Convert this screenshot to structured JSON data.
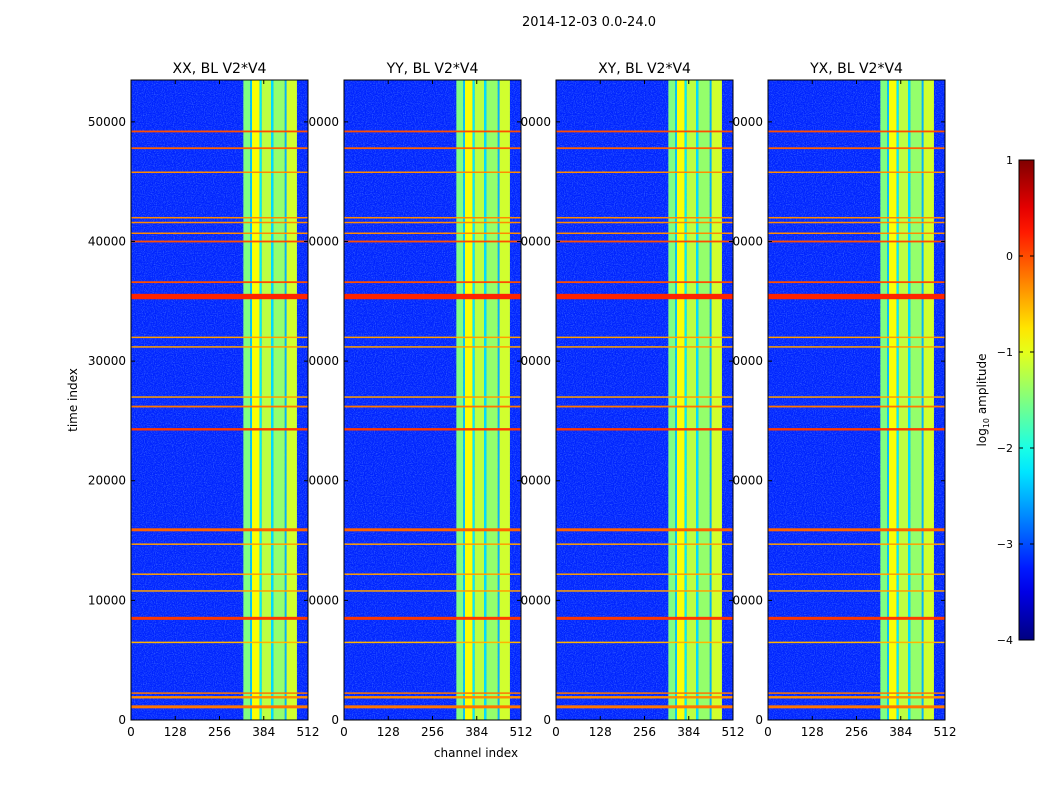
{
  "figure": {
    "suptitle": "2014-12-03 0.0-24.0"
  },
  "colormap": "jet",
  "chart_data": {
    "type": "heatmap",
    "xlabel": "channel index",
    "ylabel": "time index",
    "xlim": [
      0,
      512
    ],
    "ylim": [
      0,
      53500
    ],
    "x_ticks": [
      0,
      128,
      256,
      384,
      512
    ],
    "y_ticks": [
      0,
      10000,
      20000,
      30000,
      40000,
      50000
    ],
    "x_tick_labels": [
      "0",
      "128",
      "256",
      "384",
      "512"
    ],
    "y_tick_labels_first": [
      "0",
      "10000",
      "20000",
      "30000",
      "40000",
      "50000"
    ],
    "y_tick_labels_other": [
      "0",
      "0000",
      "0000",
      "0000",
      "0000",
      "0000"
    ],
    "background_log_amplitude": -3.2,
    "signal_channel_bands": [
      {
        "from": 325,
        "to": 345,
        "log_amplitude": -1.5
      },
      {
        "from": 345,
        "to": 350,
        "log_amplitude": -2.4
      },
      {
        "from": 350,
        "to": 372,
        "log_amplitude": -0.9
      },
      {
        "from": 372,
        "to": 378,
        "log_amplitude": -2.2
      },
      {
        "from": 378,
        "to": 405,
        "log_amplitude": -1.2
      },
      {
        "from": 405,
        "to": 412,
        "log_amplitude": -2.3
      },
      {
        "from": 412,
        "to": 445,
        "log_amplitude": -1.4
      },
      {
        "from": 445,
        "to": 450,
        "log_amplitude": -2.5
      },
      {
        "from": 450,
        "to": 480,
        "log_amplitude": -1.1
      }
    ],
    "rfi_time_lines": [
      {
        "t": 1100,
        "width": 250,
        "log_amplitude": -0.2
      },
      {
        "t": 1900,
        "width": 200,
        "log_amplitude": -0.3
      },
      {
        "t": 2250,
        "width": 120,
        "log_amplitude": -0.2
      },
      {
        "t": 6500,
        "width": 100,
        "log_amplitude": -0.5
      },
      {
        "t": 8500,
        "width": 250,
        "log_amplitude": 0.1
      },
      {
        "t": 10800,
        "width": 100,
        "log_amplitude": -0.4
      },
      {
        "t": 12200,
        "width": 100,
        "log_amplitude": -0.4
      },
      {
        "t": 14700,
        "width": 120,
        "log_amplitude": -0.4
      },
      {
        "t": 15900,
        "width": 250,
        "log_amplitude": -0.1
      },
      {
        "t": 24300,
        "width": 200,
        "log_amplitude": 0.1
      },
      {
        "t": 26200,
        "width": 150,
        "log_amplitude": -0.2
      },
      {
        "t": 27000,
        "width": 120,
        "log_amplitude": -0.4
      },
      {
        "t": 31200,
        "width": 100,
        "log_amplitude": -0.4
      },
      {
        "t": 32000,
        "width": 100,
        "log_amplitude": -0.4
      },
      {
        "t": 35400,
        "width": 450,
        "log_amplitude": 0.2
      },
      {
        "t": 36600,
        "width": 150,
        "log_amplitude": 0.0
      },
      {
        "t": 40000,
        "width": 150,
        "log_amplitude": 0.0
      },
      {
        "t": 40700,
        "width": 100,
        "log_amplitude": -0.3
      },
      {
        "t": 41600,
        "width": 100,
        "log_amplitude": -0.3
      },
      {
        "t": 42000,
        "width": 100,
        "log_amplitude": -0.3
      },
      {
        "t": 45800,
        "width": 100,
        "log_amplitude": -0.3
      },
      {
        "t": 47800,
        "width": 150,
        "log_amplitude": -0.1
      },
      {
        "t": 49200,
        "width": 150,
        "log_amplitude": 0.0
      }
    ],
    "panels": [
      {
        "title": "XX, BL V2*V4"
      },
      {
        "title": "YY, BL V2*V4"
      },
      {
        "title": "XY, BL V2*V4"
      },
      {
        "title": "YX, BL V2*V4"
      }
    ],
    "colorbar": {
      "label_main": "log",
      "label_sub": "10",
      "label_tail": " amplitude",
      "range": [
        -4,
        1
      ],
      "ticks": [
        1,
        0,
        -1,
        -2,
        -3,
        -4
      ],
      "tick_labels": [
        "1",
        "0",
        "−1",
        "−2",
        "−3",
        "−4"
      ]
    }
  }
}
